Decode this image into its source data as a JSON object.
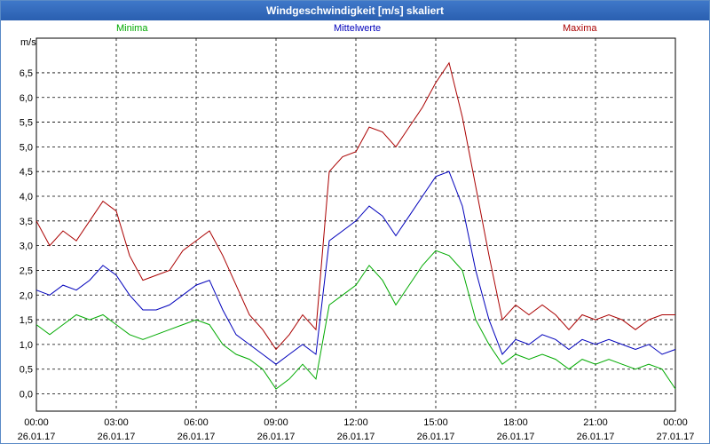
{
  "window": {
    "title": "Windgeschwindigkeit [m/s] skaliert"
  },
  "chart_data": {
    "type": "line",
    "title": "Windgeschwindigkeit [m/s] skaliert",
    "ylabel": "m/s",
    "ylim": [
      -0.35,
      7.2
    ],
    "yticks": [
      0.0,
      0.5,
      1.0,
      1.5,
      2.0,
      2.5,
      3.0,
      3.5,
      4.0,
      4.5,
      5.0,
      5.5,
      6.0,
      6.5
    ],
    "ytick_labels": [
      "0,0",
      "0,5",
      "1,0",
      "1,5",
      "2,0",
      "2,5",
      "3,0",
      "3,5",
      "4,0",
      "4,5",
      "5,0",
      "5,5",
      "6,0",
      "6,5"
    ],
    "xlim": [
      0,
      24
    ],
    "xticks": [
      0,
      3,
      6,
      9,
      12,
      15,
      18,
      21,
      24
    ],
    "xtick_labels": [
      [
        "00:00",
        "26.01.17"
      ],
      [
        "03:00",
        "26.01.17"
      ],
      [
        "06:00",
        "26.01.17"
      ],
      [
        "09:00",
        "26.01.17"
      ],
      [
        "12:00",
        "26.01.17"
      ],
      [
        "15:00",
        "26.01.17"
      ],
      [
        "18:00",
        "26.01.17"
      ],
      [
        "21:00",
        "26.01.17"
      ],
      [
        "00:00",
        "27.01.17"
      ]
    ],
    "grid": true,
    "x": [
      0,
      0.5,
      1,
      1.5,
      2,
      2.5,
      3,
      3.5,
      4,
      4.5,
      5,
      5.5,
      6,
      6.5,
      7,
      7.5,
      8,
      8.5,
      9,
      9.5,
      10,
      10.5,
      11,
      11.5,
      12,
      12.5,
      13,
      13.5,
      14,
      14.5,
      15,
      15.5,
      16,
      16.5,
      17,
      17.5,
      18,
      18.5,
      19,
      19.5,
      20,
      20.5,
      21,
      21.5,
      22,
      22.5,
      23,
      23.5,
      24
    ],
    "series": [
      {
        "name": "Minima",
        "color": "#00aa00",
        "values": [
          1.4,
          1.2,
          1.4,
          1.6,
          1.5,
          1.6,
          1.4,
          1.2,
          1.1,
          1.2,
          1.3,
          1.4,
          1.5,
          1.4,
          1.0,
          0.8,
          0.7,
          0.5,
          0.1,
          0.3,
          0.6,
          0.3,
          1.8,
          2.0,
          2.2,
          2.6,
          2.3,
          1.8,
          2.2,
          2.6,
          2.9,
          2.8,
          2.5,
          1.5,
          1.0,
          0.6,
          0.8,
          0.7,
          0.8,
          0.7,
          0.5,
          0.7,
          0.6,
          0.7,
          0.6,
          0.5,
          0.6,
          0.5,
          0.1
        ]
      },
      {
        "name": "Mittelwerte",
        "color": "#0000bb",
        "values": [
          2.1,
          2.0,
          2.2,
          2.1,
          2.3,
          2.6,
          2.4,
          2.0,
          1.7,
          1.7,
          1.8,
          2.0,
          2.2,
          2.3,
          1.7,
          1.2,
          1.0,
          0.8,
          0.6,
          0.8,
          1.0,
          0.8,
          3.1,
          3.3,
          3.5,
          3.8,
          3.6,
          3.2,
          3.6,
          4.0,
          4.4,
          4.5,
          3.8,
          2.5,
          1.5,
          0.8,
          1.1,
          1.0,
          1.2,
          1.1,
          0.9,
          1.1,
          1.0,
          1.1,
          1.0,
          0.9,
          1.0,
          0.8,
          0.9
        ]
      },
      {
        "name": "Maxima",
        "color": "#aa0000",
        "values": [
          3.5,
          3.0,
          3.3,
          3.1,
          3.5,
          3.9,
          3.7,
          2.8,
          2.3,
          2.4,
          2.5,
          2.9,
          3.1,
          3.3,
          2.8,
          2.2,
          1.6,
          1.3,
          0.9,
          1.2,
          1.6,
          1.3,
          4.5,
          4.8,
          4.9,
          5.4,
          5.3,
          5.0,
          5.4,
          5.8,
          6.3,
          6.7,
          5.6,
          4.2,
          2.8,
          1.5,
          1.8,
          1.6,
          1.8,
          1.6,
          1.3,
          1.6,
          1.5,
          1.6,
          1.5,
          1.3,
          1.5,
          1.6,
          1.6
        ]
      }
    ]
  }
}
